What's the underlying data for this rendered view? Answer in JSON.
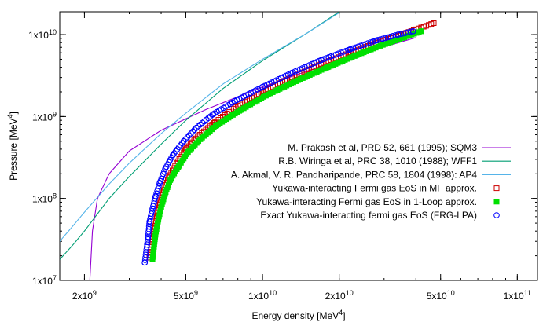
{
  "chart_data": {
    "type": "line",
    "xlabel": "Energy density [MeV",
    "xlabel_sup": "4",
    "xlabel_suffix": "]",
    "ylabel": "Pressure [MeV",
    "ylabel_sup": "4",
    "ylabel_suffix": "]",
    "xscale": "log",
    "yscale": "log",
    "xlim": [
      1600000000.0,
      120000000000.0
    ],
    "ylim": [
      10000000.0,
      19000000000.0
    ],
    "grid": false,
    "legend_position": "center-right",
    "x_ticks": [
      {
        "value": 2000000000.0,
        "mant": "2x10",
        "exp": "9"
      },
      {
        "value": 5000000000.0,
        "mant": "5x10",
        "exp": "9"
      },
      {
        "value": 10000000000.0,
        "mant": "1x10",
        "exp": "10"
      },
      {
        "value": 20000000000.0,
        "mant": "2x10",
        "exp": "10"
      },
      {
        "value": 50000000000.0,
        "mant": "5x10",
        "exp": "10"
      },
      {
        "value": 100000000000.0,
        "mant": "1x10",
        "exp": "11"
      }
    ],
    "y_ticks": [
      {
        "value": 10000000.0,
        "mant": "1x10",
        "exp": "7"
      },
      {
        "value": 100000000.0,
        "mant": "1x10",
        "exp": "8"
      },
      {
        "value": 1000000000.0,
        "mant": "1x10",
        "exp": "9"
      },
      {
        "value": 10000000000.0,
        "mant": "1x10",
        "exp": "10"
      }
    ],
    "series": [
      {
        "name": "M. Prakash et al, PRD 52, 661 (1995); SQM3",
        "kind": "line",
        "color": "#9400d3",
        "x": [
          2100000000.0,
          2150000000.0,
          2250000000.0,
          2500000000.0,
          3000000000.0,
          4000000000.0,
          6000000000.0,
          10000000000.0,
          15000000000.0,
          25000000000.0,
          40000000000.0
        ],
        "y": [
          10000000.0,
          40000000.0,
          100000000.0,
          200000000.0,
          380000000.0,
          680000000.0,
          1220000000.0,
          2300000000.0,
          3600000000.0,
          6000000000.0,
          9200000000.0
        ]
      },
      {
        "name": "R.B. Wiringa et al, PRC 38, 1010 (1988); WFF1",
        "kind": "line",
        "color": "#009e73",
        "x": [
          1600000000.0,
          1800000000.0,
          2000000000.0,
          2500000000.0,
          3000000000.0,
          4000000000.0,
          5000000000.0,
          7000000000.0,
          10000000000.0,
          15000000000.0,
          20000000000.0
        ],
        "y": [
          18000000.0,
          27000000.0,
          40000000.0,
          100000000.0,
          185000000.0,
          460000000.0,
          900000000.0,
          2200000000.0,
          4800000000.0,
          10500000000.0,
          19000000000.0
        ]
      },
      {
        "name": "A. Akmal, V. R. Pandharipande, PRC 58, 1804 (1998): AP4",
        "kind": "line",
        "color": "#56b4e9",
        "x": [
          1600000000.0,
          1800000000.0,
          2000000000.0,
          2500000000.0,
          3000000000.0,
          4000000000.0,
          5000000000.0,
          7000000000.0,
          10000000000.0,
          15000000000.0,
          20000000000.0
        ],
        "y": [
          30000000.0,
          46000000.0,
          68000000.0,
          150000000.0,
          270000000.0,
          620000000.0,
          1100000000.0,
          2500000000.0,
          5000000000.0,
          10500000000.0,
          18500000000.0
        ]
      },
      {
        "name": "Yukawa-interacting Fermi gas EoS in MF approx.",
        "kind": "open-square",
        "color": "#cc0000",
        "x": [
          3600000000.0,
          3750000000.0,
          3850000000.0,
          3950000000.0,
          4100000000.0,
          4300000000.0,
          4600000000.0,
          5000000000.0,
          5600000000.0,
          6500000000.0,
          8000000000.0,
          10000000000.0,
          13000000000.0,
          17000000000.0,
          22000000000.0,
          28000000000.0,
          35000000000.0,
          42000000000.0,
          47000000000.0
        ],
        "y": [
          19000000.0,
          39000000.0,
          60000000.0,
          85000000.0,
          125000000.0,
          185000000.0,
          270000000.0,
          400000000.0,
          580000000.0,
          850000000.0,
          1350000000.0,
          2000000000.0,
          3000000000.0,
          4400000000.0,
          6000000000.0,
          7900000000.0,
          10000000000.0,
          12200000000.0,
          13800000000.0
        ]
      },
      {
        "name": "Yukawa-interacting Fermi gas EoS in 1-Loop approx.",
        "kind": "filled-square",
        "color": "#00e000",
        "x": [
          3700000000.0,
          3800000000.0,
          3900000000.0,
          4000000000.0,
          4150000000.0,
          4350000000.0,
          4700000000.0,
          5100000000.0,
          5700000000.0,
          6600000000.0,
          8200000000.0,
          10300000000.0,
          13500000000.0,
          18000000000.0,
          23000000000.0,
          29000000000.0,
          36000000000.0,
          42000000000.0
        ],
        "y": [
          18000000.0,
          36000000.0,
          55000000.0,
          78000000.0,
          115000000.0,
          170000000.0,
          250000000.0,
          370000000.0,
          530000000.0,
          780000000.0,
          1200000000.0,
          1800000000.0,
          2700000000.0,
          4000000000.0,
          5500000000.0,
          7300000000.0,
          9300000000.0,
          11000000000.0
        ]
      },
      {
        "name": "Exact Yukawa-interacting fermi gas EoS (FRG-LPA)",
        "kind": "open-circle",
        "color": "#0000ff",
        "x": [
          3450000000.0,
          3550000000.0,
          3600000000.0,
          3700000000.0,
          3800000000.0,
          3950000000.0,
          4150000000.0,
          4450000000.0,
          4900000000.0,
          5500000000.0,
          6400000000.0,
          7800000000.0,
          10000000000.0,
          13000000000.0,
          17000000000.0,
          22000000000.0,
          28000000000.0,
          34000000000.0,
          39000000000.0
        ],
        "y": [
          16500000.0,
          33000000.0,
          52000000.0,
          75000000.0,
          105000000.0,
          155000000.0,
          230000000.0,
          340000000.0,
          500000000.0,
          730000000.0,
          1070000000.0,
          1550000000.0,
          2300000000.0,
          3400000000.0,
          4900000000.0,
          6600000000.0,
          8500000000.0,
          10000000000.0,
          11000000000.0
        ]
      }
    ]
  }
}
